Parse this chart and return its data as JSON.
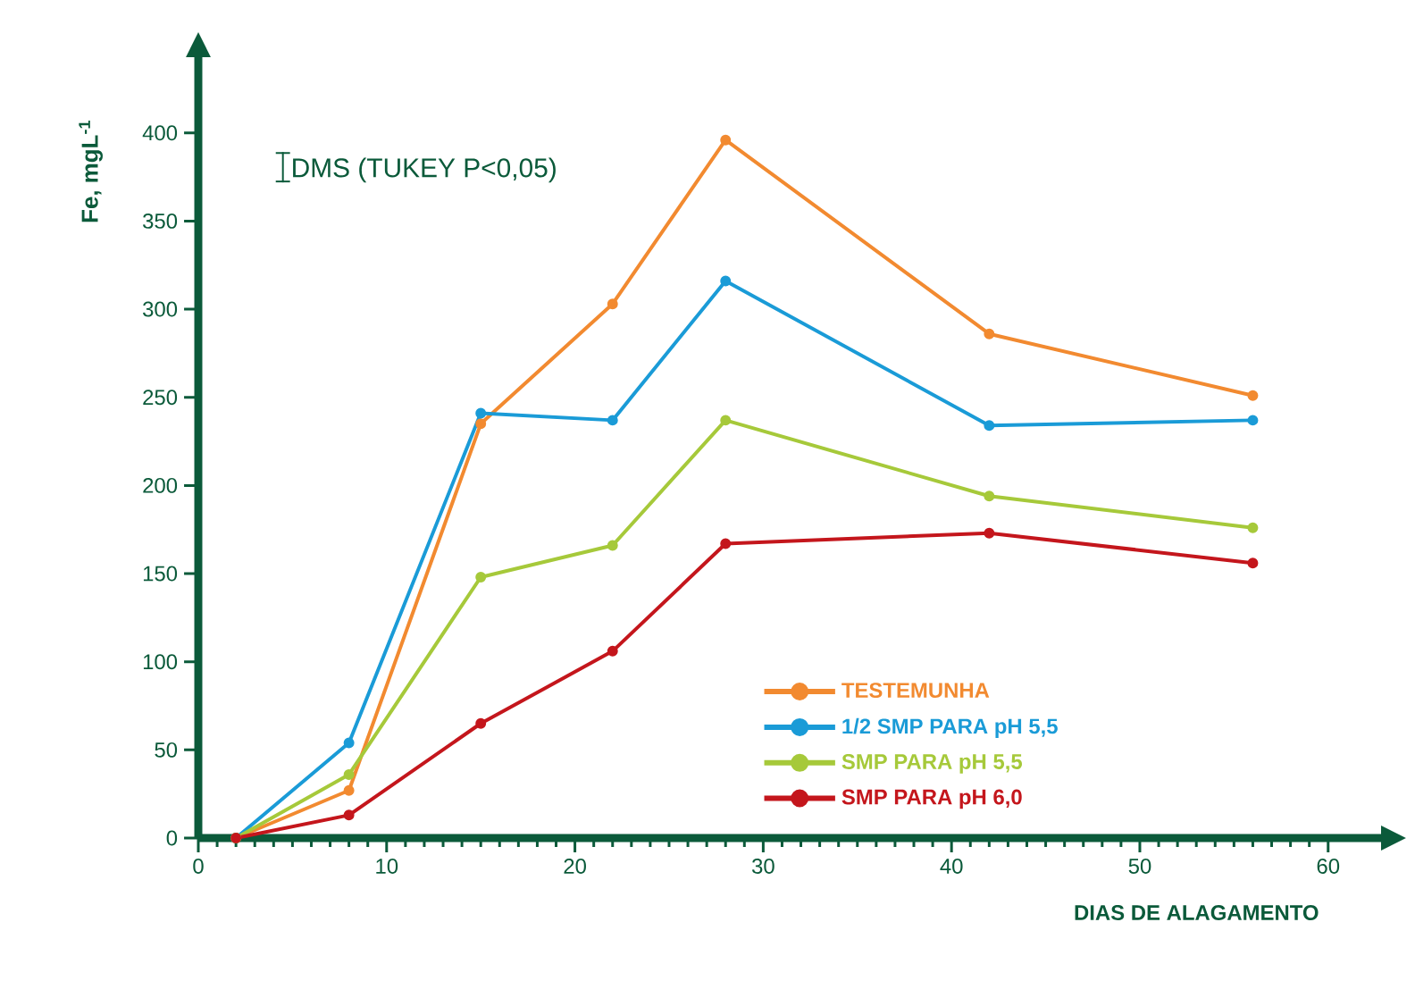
{
  "chart_data": {
    "type": "line",
    "xlabel": "DIAS DE ALAGAMENTO",
    "ylabel": "Fe, mgL$^{-1}$",
    "annotations": [
      "DMS (TUKEY P<0,05)"
    ],
    "x": [
      2,
      8,
      15,
      22,
      28,
      42,
      56
    ],
    "xlim": [
      0,
      63
    ],
    "ylim": [
      0,
      445
    ],
    "xticks": [
      0,
      10,
      20,
      30,
      40,
      50,
      60
    ],
    "yticks": [
      0,
      50,
      100,
      150,
      200,
      250,
      300,
      350,
      400
    ],
    "legend": "bottom right",
    "marker": "circle",
    "line_style": "solid",
    "series": [
      {
        "name": "TESTEMUNHA",
        "color": "#f28a30",
        "values": [
          0,
          27,
          235,
          303,
          396,
          286,
          251
        ]
      },
      {
        "name": "1/2 SMP PARA pH 5,5",
        "color": "#1a9bd7",
        "values": [
          0,
          54,
          241,
          237,
          316,
          234,
          237
        ]
      },
      {
        "name": "SMP PARA pH 5,5",
        "color": "#a6c93a",
        "values": [
          0,
          36,
          148,
          166,
          237,
          194,
          176
        ]
      },
      {
        "name": "SMP PARA pH 6,0",
        "color": "#c4161c",
        "values": [
          0,
          13,
          65,
          106,
          167,
          173,
          156
        ]
      }
    ]
  }
}
